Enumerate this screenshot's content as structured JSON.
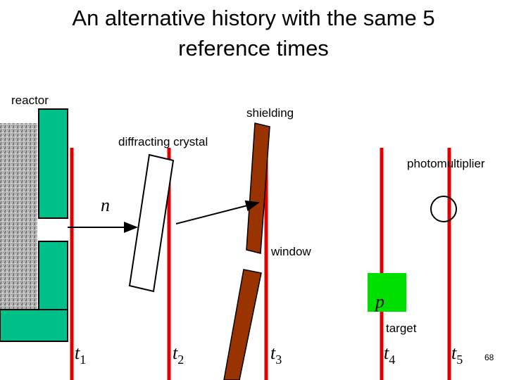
{
  "header": {
    "title_lines": [
      "An alternative history with the same 5",
      "reference times"
    ]
  },
  "labels": {
    "reactor": "reactor",
    "shielding": "shielding",
    "crystal": "diffracting crystal",
    "photomultiplier": "photomultiplier",
    "window": "window",
    "target": "target",
    "neutron": "n",
    "proton": "p"
  },
  "times": [
    {
      "symbol": "t",
      "index": "1"
    },
    {
      "symbol": "t",
      "index": "2"
    },
    {
      "symbol": "t",
      "index": "3"
    },
    {
      "symbol": "t",
      "index": "4"
    },
    {
      "symbol": "t",
      "index": "5"
    }
  ],
  "page_number": "68"
}
